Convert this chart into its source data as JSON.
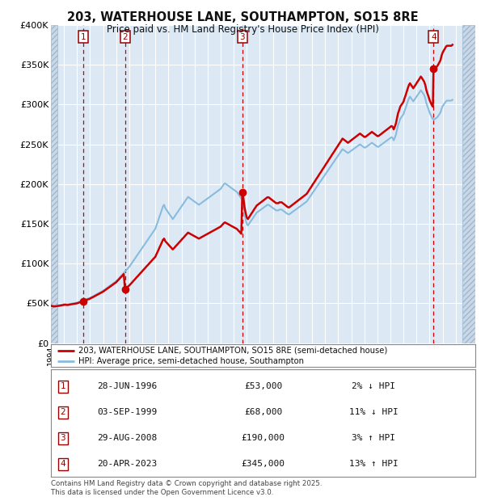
{
  "title_line1": "203, WATERHOUSE LANE, SOUTHAMPTON, SO15 8RE",
  "title_line2": "Price paid vs. HM Land Registry's House Price Index (HPI)",
  "background_color": "#ffffff",
  "plot_bg_color": "#dce9f5",
  "grid_color": "#ffffff",
  "red_line_color": "#cc0000",
  "blue_line_color": "#88bbdd",
  "sale_marker_color": "#cc0000",
  "vline_color": "#cc0000",
  "transactions": [
    {
      "num": 1,
      "date_dec": 1996.49,
      "price": 53000,
      "label": "28-JUN-1996",
      "price_str": "£53,000",
      "hpi_pct": "2%",
      "hpi_dir": "↓"
    },
    {
      "num": 2,
      "date_dec": 1999.67,
      "price": 68000,
      "label": "03-SEP-1999",
      "price_str": "£68,000",
      "hpi_pct": "11%",
      "hpi_dir": "↓"
    },
    {
      "num": 3,
      "date_dec": 2008.66,
      "price": 190000,
      "label": "29-AUG-2008",
      "price_str": "£190,000",
      "hpi_pct": "3%",
      "hpi_dir": "↑"
    },
    {
      "num": 4,
      "date_dec": 2023.3,
      "price": 345000,
      "label": "20-APR-2023",
      "price_str": "£345,000",
      "hpi_pct": "13%",
      "hpi_dir": "↑"
    }
  ],
  "ylim": [
    0,
    400000
  ],
  "yticks": [
    0,
    50000,
    100000,
    150000,
    200000,
    250000,
    300000,
    350000,
    400000
  ],
  "ytick_labels": [
    "£0",
    "£50K",
    "£100K",
    "£150K",
    "£200K",
    "£250K",
    "£300K",
    "£350K",
    "£400K"
  ],
  "xmin": 1994.0,
  "xmax": 2026.5,
  "legend_red_label": "203, WATERHOUSE LANE, SOUTHAMPTON, SO15 8RE (semi-detached house)",
  "legend_blue_label": "HPI: Average price, semi-detached house, Southampton",
  "footnote_line1": "Contains HM Land Registry data © Crown copyright and database right 2025.",
  "footnote_line2": "This data is licensed under the Open Government Licence v3.0.",
  "hpi_data": [
    [
      1994.0,
      48000
    ],
    [
      1994.08,
      47500
    ],
    [
      1994.17,
      47200
    ],
    [
      1994.25,
      47000
    ],
    [
      1994.33,
      47100
    ],
    [
      1994.42,
      47300
    ],
    [
      1994.5,
      47500
    ],
    [
      1994.58,
      47800
    ],
    [
      1994.67,
      48000
    ],
    [
      1994.75,
      48200
    ],
    [
      1994.83,
      48500
    ],
    [
      1994.92,
      48800
    ],
    [
      1995.0,
      49000
    ],
    [
      1995.08,
      49200
    ],
    [
      1995.17,
      49000
    ],
    [
      1995.25,
      48800
    ],
    [
      1995.33,
      49000
    ],
    [
      1995.42,
      49200
    ],
    [
      1995.5,
      49500
    ],
    [
      1995.58,
      49800
    ],
    [
      1995.67,
      50000
    ],
    [
      1995.75,
      50200
    ],
    [
      1995.83,
      50500
    ],
    [
      1995.92,
      50800
    ],
    [
      1996.0,
      51000
    ],
    [
      1996.08,
      51500
    ],
    [
      1996.17,
      52000
    ],
    [
      1996.25,
      52500
    ],
    [
      1996.33,
      53000
    ],
    [
      1996.42,
      53500
    ],
    [
      1996.5,
      54000
    ],
    [
      1996.58,
      54500
    ],
    [
      1996.67,
      55000
    ],
    [
      1996.75,
      55500
    ],
    [
      1996.83,
      56000
    ],
    [
      1996.92,
      56500
    ],
    [
      1997.0,
      57000
    ],
    [
      1997.08,
      57800
    ],
    [
      1997.17,
      58500
    ],
    [
      1997.25,
      59200
    ],
    [
      1997.33,
      60000
    ],
    [
      1997.42,
      60800
    ],
    [
      1997.5,
      61500
    ],
    [
      1997.58,
      62200
    ],
    [
      1997.67,
      63000
    ],
    [
      1997.75,
      63800
    ],
    [
      1997.83,
      64500
    ],
    [
      1997.92,
      65200
    ],
    [
      1998.0,
      66000
    ],
    [
      1998.08,
      67000
    ],
    [
      1998.17,
      68000
    ],
    [
      1998.25,
      69000
    ],
    [
      1998.33,
      70000
    ],
    [
      1998.42,
      71000
    ],
    [
      1998.5,
      72000
    ],
    [
      1998.58,
      73000
    ],
    [
      1998.67,
      74000
    ],
    [
      1998.75,
      75000
    ],
    [
      1998.83,
      76000
    ],
    [
      1998.92,
      77000
    ],
    [
      1999.0,
      78000
    ],
    [
      1999.08,
      79500
    ],
    [
      1999.17,
      81000
    ],
    [
      1999.25,
      82500
    ],
    [
      1999.33,
      84000
    ],
    [
      1999.42,
      85500
    ],
    [
      1999.5,
      87000
    ],
    [
      1999.58,
      88500
    ],
    [
      1999.67,
      90000
    ],
    [
      1999.75,
      91500
    ],
    [
      1999.83,
      93000
    ],
    [
      1999.92,
      94500
    ],
    [
      2000.0,
      96000
    ],
    [
      2000.08,
      98000
    ],
    [
      2000.17,
      100000
    ],
    [
      2000.25,
      102000
    ],
    [
      2000.33,
      104000
    ],
    [
      2000.42,
      106000
    ],
    [
      2000.5,
      108000
    ],
    [
      2000.58,
      110000
    ],
    [
      2000.67,
      112000
    ],
    [
      2000.75,
      114000
    ],
    [
      2000.83,
      116000
    ],
    [
      2000.92,
      118000
    ],
    [
      2001.0,
      120000
    ],
    [
      2001.08,
      122000
    ],
    [
      2001.17,
      124000
    ],
    [
      2001.25,
      126000
    ],
    [
      2001.33,
      128000
    ],
    [
      2001.42,
      130000
    ],
    [
      2001.5,
      132000
    ],
    [
      2001.58,
      134000
    ],
    [
      2001.67,
      136000
    ],
    [
      2001.75,
      138000
    ],
    [
      2001.83,
      140000
    ],
    [
      2001.92,
      142000
    ],
    [
      2002.0,
      144000
    ],
    [
      2002.08,
      148000
    ],
    [
      2002.17,
      152000
    ],
    [
      2002.25,
      156000
    ],
    [
      2002.33,
      160000
    ],
    [
      2002.42,
      164000
    ],
    [
      2002.5,
      168000
    ],
    [
      2002.58,
      172000
    ],
    [
      2002.67,
      174000
    ],
    [
      2002.75,
      170000
    ],
    [
      2002.83,
      168000
    ],
    [
      2002.92,
      166000
    ],
    [
      2003.0,
      164000
    ],
    [
      2003.08,
      162000
    ],
    [
      2003.17,
      160000
    ],
    [
      2003.25,
      158000
    ],
    [
      2003.33,
      156000
    ],
    [
      2003.42,
      158000
    ],
    [
      2003.5,
      160000
    ],
    [
      2003.58,
      162000
    ],
    [
      2003.67,
      164000
    ],
    [
      2003.75,
      166000
    ],
    [
      2003.83,
      168000
    ],
    [
      2003.92,
      170000
    ],
    [
      2004.0,
      172000
    ],
    [
      2004.08,
      174000
    ],
    [
      2004.17,
      176000
    ],
    [
      2004.25,
      178000
    ],
    [
      2004.33,
      180000
    ],
    [
      2004.42,
      182000
    ],
    [
      2004.5,
      184000
    ],
    [
      2004.58,
      183000
    ],
    [
      2004.67,
      182000
    ],
    [
      2004.75,
      181000
    ],
    [
      2004.83,
      180000
    ],
    [
      2004.92,
      179000
    ],
    [
      2005.0,
      178000
    ],
    [
      2005.08,
      177000
    ],
    [
      2005.17,
      176000
    ],
    [
      2005.25,
      175000
    ],
    [
      2005.33,
      174000
    ],
    [
      2005.42,
      175000
    ],
    [
      2005.5,
      176000
    ],
    [
      2005.58,
      177000
    ],
    [
      2005.67,
      178000
    ],
    [
      2005.75,
      179000
    ],
    [
      2005.83,
      180000
    ],
    [
      2005.92,
      181000
    ],
    [
      2006.0,
      182000
    ],
    [
      2006.08,
      183000
    ],
    [
      2006.17,
      184000
    ],
    [
      2006.25,
      185000
    ],
    [
      2006.33,
      186000
    ],
    [
      2006.42,
      187000
    ],
    [
      2006.5,
      188000
    ],
    [
      2006.58,
      189000
    ],
    [
      2006.67,
      190000
    ],
    [
      2006.75,
      191000
    ],
    [
      2006.83,
      192000
    ],
    [
      2006.92,
      193000
    ],
    [
      2007.0,
      194000
    ],
    [
      2007.08,
      196000
    ],
    [
      2007.17,
      198000
    ],
    [
      2007.25,
      200000
    ],
    [
      2007.33,
      201000
    ],
    [
      2007.42,
      200000
    ],
    [
      2007.5,
      199000
    ],
    [
      2007.58,
      198000
    ],
    [
      2007.67,
      197000
    ],
    [
      2007.75,
      196000
    ],
    [
      2007.83,
      195000
    ],
    [
      2007.92,
      194000
    ],
    [
      2008.0,
      193000
    ],
    [
      2008.08,
      192000
    ],
    [
      2008.17,
      191000
    ],
    [
      2008.25,
      190000
    ],
    [
      2008.33,
      188000
    ],
    [
      2008.42,
      186000
    ],
    [
      2008.5,
      184000
    ],
    [
      2008.58,
      182000
    ],
    [
      2008.67,
      180000
    ],
    [
      2008.75,
      172000
    ],
    [
      2008.83,
      162000
    ],
    [
      2008.92,
      155000
    ],
    [
      2009.0,
      150000
    ],
    [
      2009.08,
      148000
    ],
    [
      2009.17,
      150000
    ],
    [
      2009.25,
      152000
    ],
    [
      2009.33,
      154000
    ],
    [
      2009.42,
      156000
    ],
    [
      2009.5,
      158000
    ],
    [
      2009.58,
      160000
    ],
    [
      2009.67,
      162000
    ],
    [
      2009.75,
      164000
    ],
    [
      2009.83,
      165000
    ],
    [
      2009.92,
      166000
    ],
    [
      2010.0,
      167000
    ],
    [
      2010.08,
      168000
    ],
    [
      2010.17,
      169000
    ],
    [
      2010.25,
      170000
    ],
    [
      2010.33,
      171000
    ],
    [
      2010.42,
      172000
    ],
    [
      2010.5,
      173000
    ],
    [
      2010.58,
      174000
    ],
    [
      2010.67,
      174000
    ],
    [
      2010.75,
      173000
    ],
    [
      2010.83,
      172000
    ],
    [
      2010.92,
      171000
    ],
    [
      2011.0,
      170000
    ],
    [
      2011.08,
      169000
    ],
    [
      2011.17,
      168000
    ],
    [
      2011.25,
      167000
    ],
    [
      2011.33,
      167000
    ],
    [
      2011.42,
      167000
    ],
    [
      2011.5,
      168000
    ],
    [
      2011.58,
      168000
    ],
    [
      2011.67,
      168000
    ],
    [
      2011.75,
      167000
    ],
    [
      2011.83,
      166000
    ],
    [
      2011.92,
      165000
    ],
    [
      2012.0,
      164000
    ],
    [
      2012.08,
      163000
    ],
    [
      2012.17,
      162000
    ],
    [
      2012.25,
      162000
    ],
    [
      2012.33,
      163000
    ],
    [
      2012.42,
      164000
    ],
    [
      2012.5,
      165000
    ],
    [
      2012.58,
      166000
    ],
    [
      2012.67,
      167000
    ],
    [
      2012.75,
      168000
    ],
    [
      2012.83,
      169000
    ],
    [
      2012.92,
      170000
    ],
    [
      2013.0,
      171000
    ],
    [
      2013.08,
      172000
    ],
    [
      2013.17,
      173000
    ],
    [
      2013.25,
      174000
    ],
    [
      2013.33,
      175000
    ],
    [
      2013.42,
      176000
    ],
    [
      2013.5,
      177000
    ],
    [
      2013.58,
      178000
    ],
    [
      2013.67,
      180000
    ],
    [
      2013.75,
      182000
    ],
    [
      2013.83,
      184000
    ],
    [
      2013.92,
      186000
    ],
    [
      2014.0,
      188000
    ],
    [
      2014.08,
      190000
    ],
    [
      2014.17,
      192000
    ],
    [
      2014.25,
      194000
    ],
    [
      2014.33,
      196000
    ],
    [
      2014.42,
      198000
    ],
    [
      2014.5,
      200000
    ],
    [
      2014.58,
      202000
    ],
    [
      2014.67,
      204000
    ],
    [
      2014.75,
      206000
    ],
    [
      2014.83,
      208000
    ],
    [
      2014.92,
      210000
    ],
    [
      2015.0,
      212000
    ],
    [
      2015.08,
      214000
    ],
    [
      2015.17,
      216000
    ],
    [
      2015.25,
      218000
    ],
    [
      2015.33,
      220000
    ],
    [
      2015.42,
      222000
    ],
    [
      2015.5,
      224000
    ],
    [
      2015.58,
      226000
    ],
    [
      2015.67,
      228000
    ],
    [
      2015.75,
      230000
    ],
    [
      2015.83,
      232000
    ],
    [
      2015.92,
      234000
    ],
    [
      2016.0,
      236000
    ],
    [
      2016.08,
      238000
    ],
    [
      2016.17,
      240000
    ],
    [
      2016.25,
      242000
    ],
    [
      2016.33,
      244000
    ],
    [
      2016.42,
      243000
    ],
    [
      2016.5,
      242000
    ],
    [
      2016.58,
      241000
    ],
    [
      2016.67,
      240000
    ],
    [
      2016.75,
      239000
    ],
    [
      2016.83,
      240000
    ],
    [
      2016.92,
      241000
    ],
    [
      2017.0,
      242000
    ],
    [
      2017.08,
      243000
    ],
    [
      2017.17,
      244000
    ],
    [
      2017.25,
      245000
    ],
    [
      2017.33,
      246000
    ],
    [
      2017.42,
      247000
    ],
    [
      2017.5,
      248000
    ],
    [
      2017.58,
      249000
    ],
    [
      2017.67,
      250000
    ],
    [
      2017.75,
      249000
    ],
    [
      2017.83,
      248000
    ],
    [
      2017.92,
      247000
    ],
    [
      2018.0,
      246000
    ],
    [
      2018.08,
      246000
    ],
    [
      2018.17,
      247000
    ],
    [
      2018.25,
      248000
    ],
    [
      2018.33,
      249000
    ],
    [
      2018.42,
      250000
    ],
    [
      2018.5,
      251000
    ],
    [
      2018.58,
      252000
    ],
    [
      2018.67,
      251000
    ],
    [
      2018.75,
      250000
    ],
    [
      2018.83,
      249000
    ],
    [
      2018.92,
      248000
    ],
    [
      2019.0,
      247000
    ],
    [
      2019.08,
      247000
    ],
    [
      2019.17,
      248000
    ],
    [
      2019.25,
      249000
    ],
    [
      2019.33,
      250000
    ],
    [
      2019.42,
      251000
    ],
    [
      2019.5,
      252000
    ],
    [
      2019.58,
      253000
    ],
    [
      2019.67,
      254000
    ],
    [
      2019.75,
      255000
    ],
    [
      2019.83,
      256000
    ],
    [
      2019.92,
      257000
    ],
    [
      2020.0,
      258000
    ],
    [
      2020.08,
      259000
    ],
    [
      2020.17,
      258000
    ],
    [
      2020.25,
      255000
    ],
    [
      2020.33,
      258000
    ],
    [
      2020.42,
      262000
    ],
    [
      2020.5,
      268000
    ],
    [
      2020.58,
      274000
    ],
    [
      2020.67,
      278000
    ],
    [
      2020.75,
      282000
    ],
    [
      2020.83,
      284000
    ],
    [
      2020.92,
      286000
    ],
    [
      2021.0,
      288000
    ],
    [
      2021.08,
      292000
    ],
    [
      2021.17,
      296000
    ],
    [
      2021.25,
      300000
    ],
    [
      2021.33,
      304000
    ],
    [
      2021.42,
      308000
    ],
    [
      2021.5,
      310000
    ],
    [
      2021.58,
      308000
    ],
    [
      2021.67,
      306000
    ],
    [
      2021.75,
      304000
    ],
    [
      2021.83,
      306000
    ],
    [
      2021.92,
      308000
    ],
    [
      2022.0,
      310000
    ],
    [
      2022.08,
      312000
    ],
    [
      2022.17,
      314000
    ],
    [
      2022.25,
      316000
    ],
    [
      2022.33,
      318000
    ],
    [
      2022.42,
      316000
    ],
    [
      2022.5,
      314000
    ],
    [
      2022.58,
      312000
    ],
    [
      2022.67,
      308000
    ],
    [
      2022.75,
      302000
    ],
    [
      2022.83,
      298000
    ],
    [
      2022.92,
      294000
    ],
    [
      2023.0,
      290000
    ],
    [
      2023.08,
      287000
    ],
    [
      2023.17,
      284000
    ],
    [
      2023.25,
      282000
    ],
    [
      2023.33,
      281000
    ],
    [
      2023.42,
      282000
    ],
    [
      2023.5,
      283000
    ],
    [
      2023.58,
      284000
    ],
    [
      2023.67,
      286000
    ],
    [
      2023.75,
      288000
    ],
    [
      2023.83,
      290000
    ],
    [
      2023.92,
      295000
    ],
    [
      2024.0,
      298000
    ],
    [
      2024.08,
      300000
    ],
    [
      2024.17,
      302000
    ],
    [
      2024.25,
      304000
    ],
    [
      2024.33,
      305000
    ],
    [
      2024.5,
      305000
    ],
    [
      2024.67,
      305000
    ],
    [
      2024.75,
      306000
    ]
  ]
}
